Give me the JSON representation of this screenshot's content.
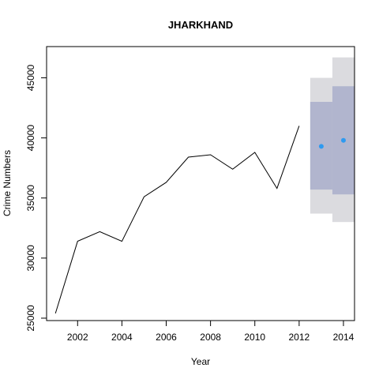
{
  "chart_data": {
    "type": "line",
    "title": "JHARKHAND",
    "xlabel": "Year",
    "ylabel": "Crime Numbers",
    "xlim": [
      2000.6,
      2014.5
    ],
    "ylim": [
      24800,
      47600
    ],
    "x_ticks": [
      2002,
      2004,
      2006,
      2008,
      2010,
      2012,
      2014
    ],
    "y_ticks": [
      25000,
      30000,
      35000,
      40000,
      45000
    ],
    "grid": false,
    "legend": "none",
    "series": [
      {
        "x": [
          2001,
          2002,
          2003,
          2004,
          2005,
          2006,
          2007,
          2008,
          2009,
          2010,
          2011,
          2012
        ],
        "values": [
          25400,
          31400,
          32200,
          31400,
          35100,
          36300,
          38400,
          38600,
          37400,
          38800,
          35800,
          41000
        ],
        "color": "#000000"
      }
    ],
    "forecast": {
      "x": [
        2013,
        2014
      ],
      "point": [
        39300,
        39800
      ],
      "lower_80": [
        35700,
        35300
      ],
      "upper_80": [
        43000,
        44300
      ],
      "lower_95": [
        33700,
        33000
      ],
      "upper_95": [
        45000,
        46700
      ],
      "point_color": "#2E9AF0",
      "band_80_color": "#B1B5CE",
      "band_95_color": "#DBDBDF"
    }
  }
}
